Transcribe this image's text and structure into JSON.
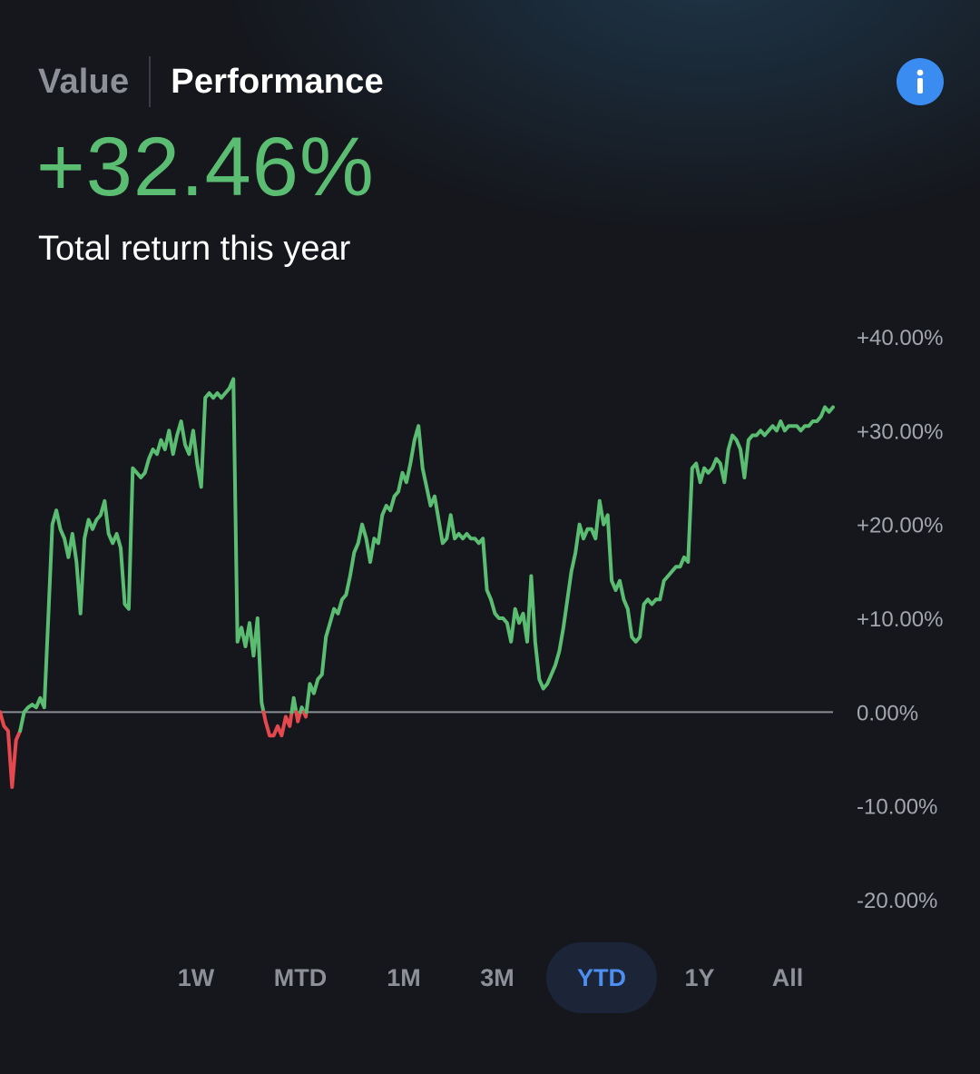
{
  "tabs": {
    "value_label": "Value",
    "performance_label": "Performance",
    "active": "Performance"
  },
  "summary": {
    "return_value": "+32.46%",
    "return_label": "Total return this year"
  },
  "colors": {
    "positive": "#5bbd72",
    "negative": "#e5484d",
    "baseline": "#8a8d93",
    "accent": "#3b8cf0",
    "background": "#15171d"
  },
  "icons": {
    "info": "info-icon"
  },
  "ranges": [
    "1W",
    "MTD",
    "1M",
    "3M",
    "YTD",
    "1Y",
    "All"
  ],
  "selected_range": "YTD",
  "chart_data": {
    "type": "line",
    "title": "",
    "xlabel": "",
    "ylabel": "",
    "ylim": [
      -20,
      40
    ],
    "y_tick_labels": [
      "+40.00%",
      "+30.00%",
      "+20.00%",
      "+10.00%",
      "0.00%",
      "-10.00%",
      "-20.00%"
    ],
    "y_tick_values": [
      40,
      30,
      20,
      10,
      0,
      -10,
      -20
    ],
    "grid": false,
    "legend": "none",
    "baseline": 0,
    "series": [
      {
        "values": [
          0,
          -1.5,
          -2,
          -8,
          -3,
          -2,
          0,
          0.5,
          0.8,
          0.5,
          1.5,
          0.5,
          10,
          20,
          21.5,
          19.5,
          18.5,
          16.5,
          19,
          16,
          10.5,
          18.5,
          20.5,
          19.5,
          20.5,
          21,
          22.5,
          19,
          18,
          19,
          17.5,
          11.5,
          11,
          26,
          25.5,
          25,
          25.5,
          27,
          28,
          27.5,
          29,
          28,
          30,
          27.5,
          29.5,
          31,
          28.5,
          27.5,
          30,
          26.5,
          24,
          33.5,
          34,
          33.5,
          34,
          33.5,
          34,
          34.5,
          35.5,
          7.5,
          9,
          7,
          9.5,
          6,
          10,
          1,
          -1,
          -2.5,
          -2.5,
          -1.5,
          -2.5,
          -0.5,
          -1.5,
          1.5,
          -1,
          0.5,
          -0.5,
          3,
          2,
          3.5,
          4,
          8,
          9.5,
          11,
          10.5,
          12,
          12.5,
          14.5,
          17,
          18,
          20,
          18.5,
          16,
          18.5,
          18,
          21,
          22,
          21.5,
          23,
          23.5,
          25.5,
          24.5,
          26.5,
          29,
          30.5,
          26,
          24,
          22,
          23,
          20.5,
          18,
          18.5,
          21,
          18.5,
          19,
          18.5,
          19,
          18.5,
          18.5,
          18,
          18.5,
          13,
          12,
          10.5,
          10,
          10,
          9.5,
          7.5,
          11,
          9.5,
          10.5,
          7.5,
          14.5,
          7.5,
          3.5,
          2.5,
          3,
          4,
          5,
          6.5,
          9,
          12,
          15,
          17,
          20,
          18.5,
          19.5,
          19.5,
          18.5,
          22.5,
          20,
          21,
          14,
          13,
          14,
          12,
          11,
          8,
          7.5,
          8,
          11.5,
          12,
          11.5,
          12,
          12,
          14,
          14.5,
          15,
          15.5,
          15.5,
          16.5,
          16,
          26,
          26.5,
          24.5,
          26,
          25.5,
          26,
          27,
          26.5,
          24.5,
          28,
          29.5,
          29,
          28,
          25,
          29,
          29.5,
          29.5,
          30,
          29.5,
          30,
          30.5,
          30,
          31,
          30,
          30.5,
          30.5,
          30.5,
          30,
          30.5,
          30.5,
          31,
          31,
          31.5,
          32.5,
          32,
          32.5
        ]
      }
    ]
  }
}
